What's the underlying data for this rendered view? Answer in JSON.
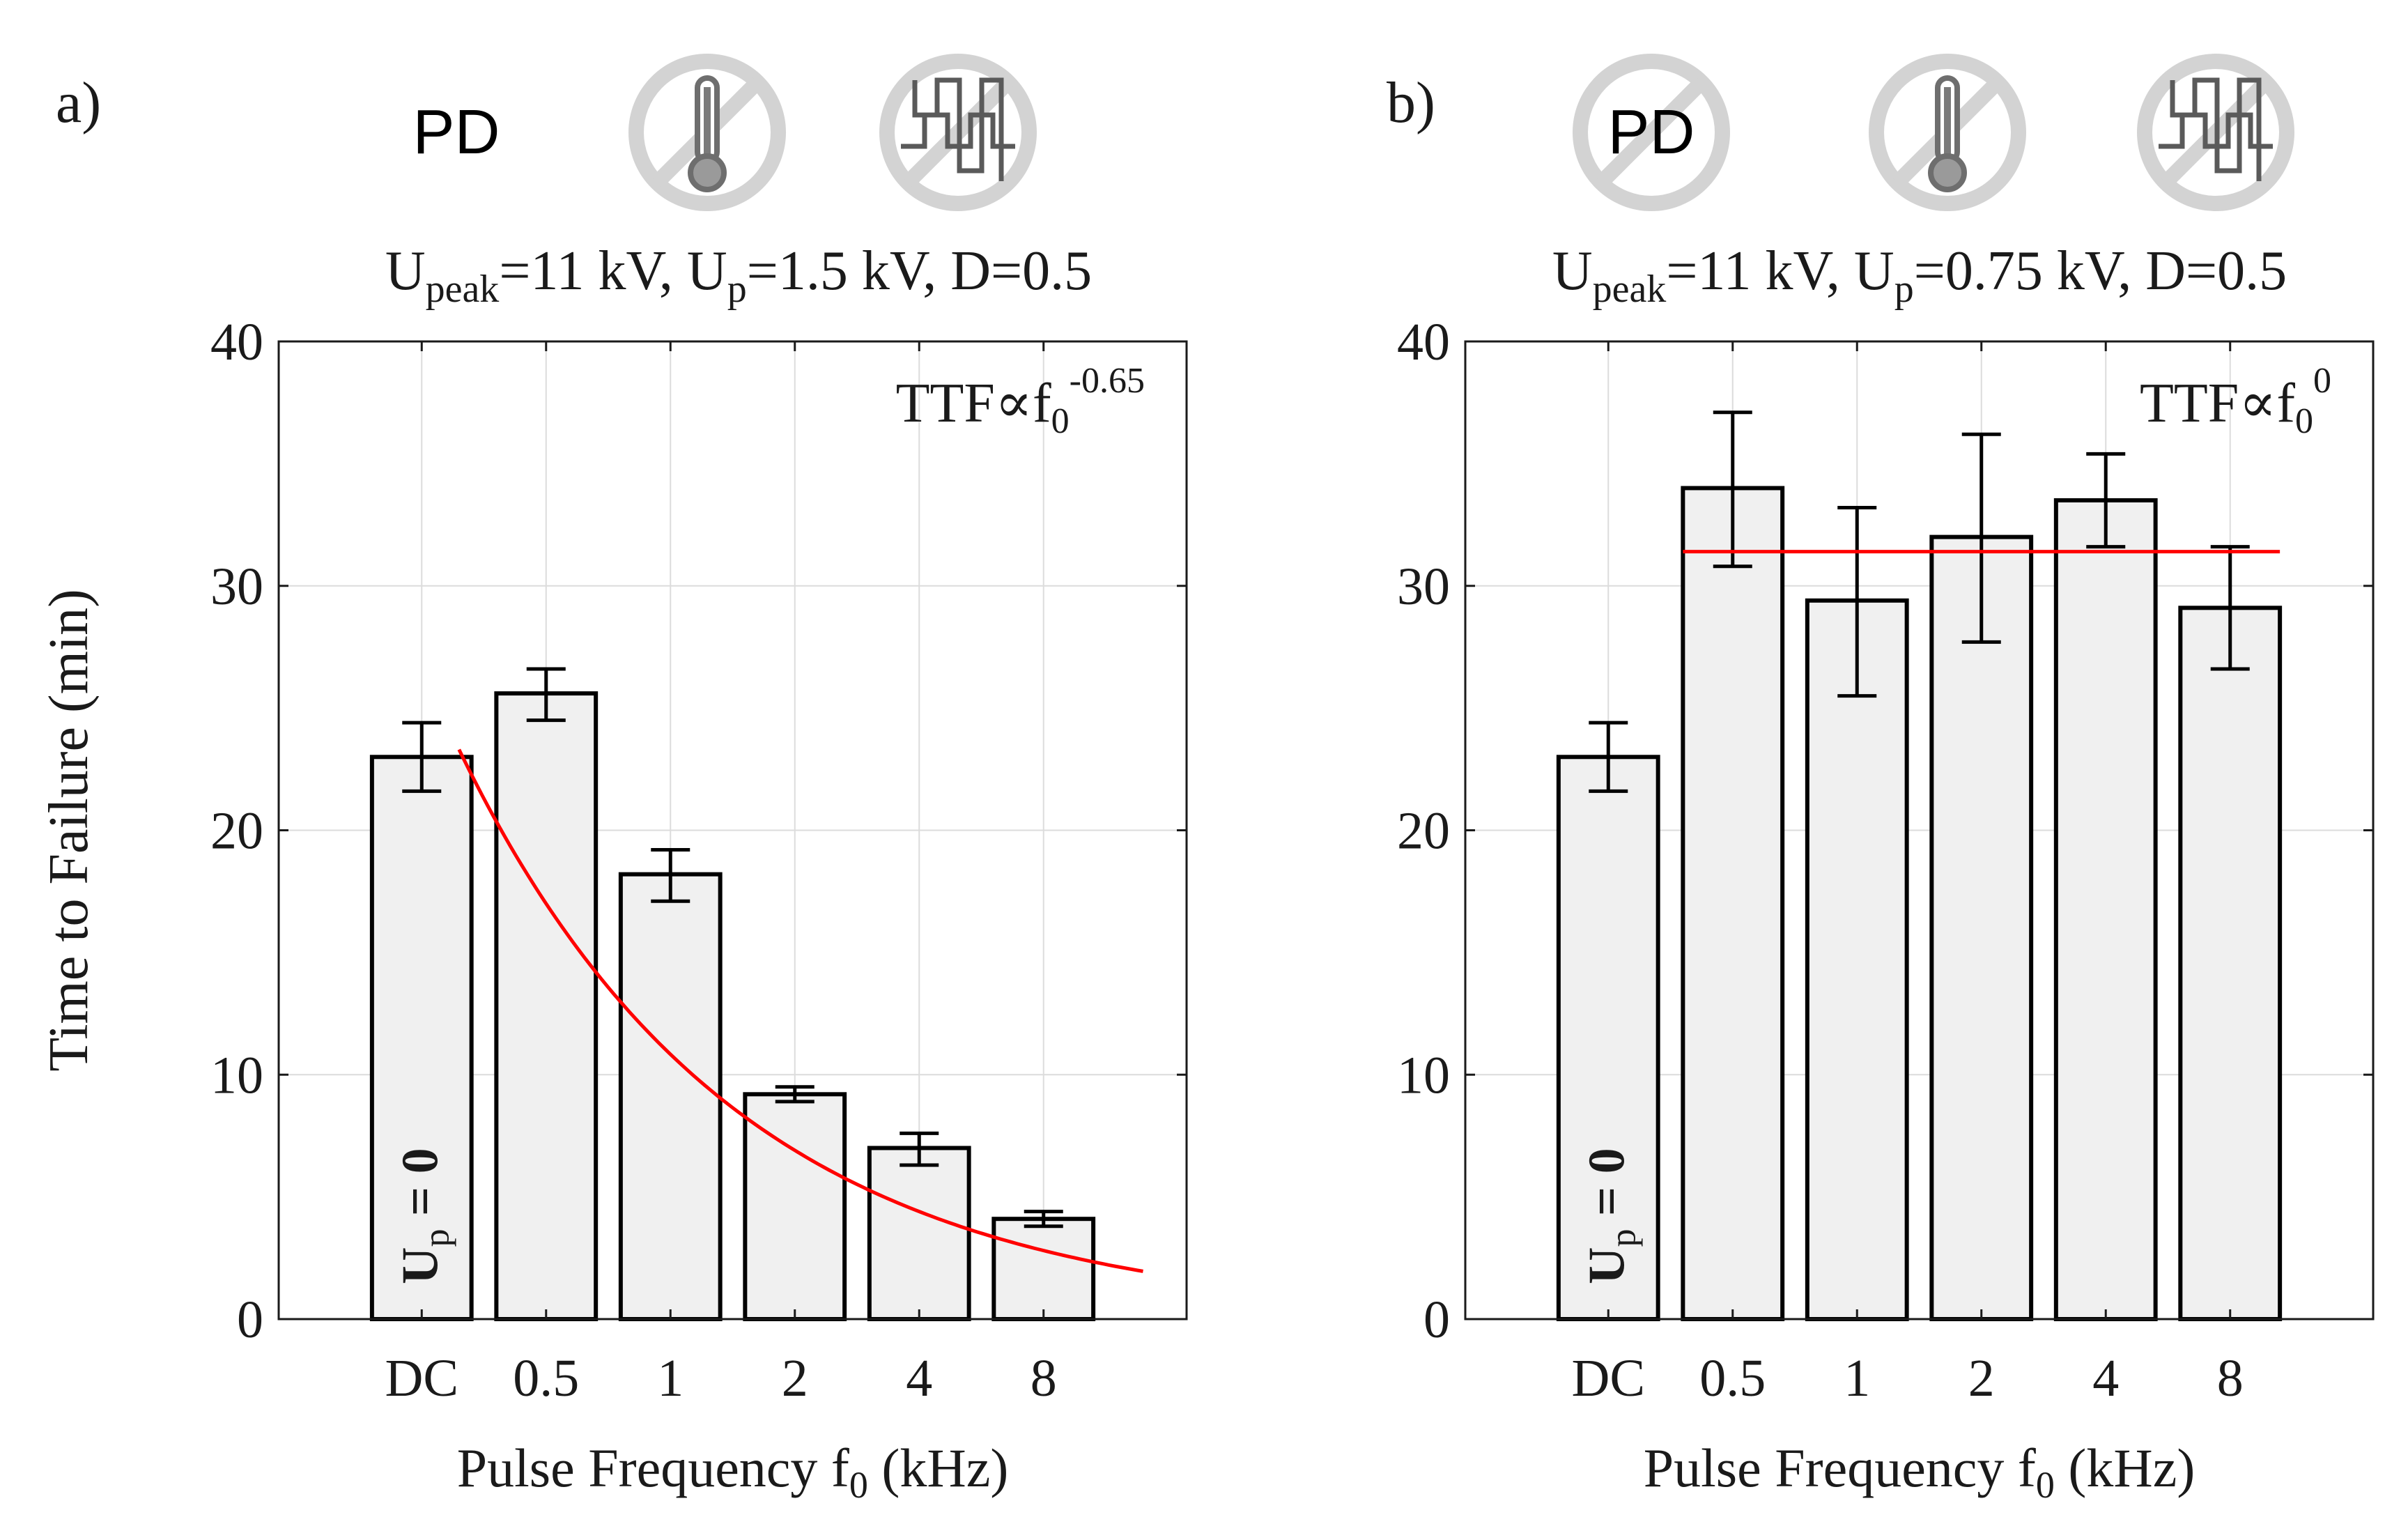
{
  "chart_data": [
    {
      "type": "bar",
      "panel_label": "a)",
      "title_parts": {
        "U": "U",
        "peak_sub": "peak",
        "mid1": "=11 kV, U",
        "p_sub": "p",
        "tail": "=1.5 kV, D=0.5"
      },
      "xlabel_parts": {
        "pre": "Pulse Frequency f",
        "sub": "0",
        "post": " (kHz)"
      },
      "ylabel": "Time to Failure (min)",
      "categories": [
        "DC",
        "0.5",
        "1",
        "2",
        "4",
        "8"
      ],
      "values": [
        23.0,
        25.6,
        18.2,
        9.2,
        7.0,
        4.1
      ],
      "err_low": [
        21.6,
        24.5,
        17.1,
        8.9,
        6.3,
        3.8
      ],
      "err_high": [
        24.4,
        26.6,
        19.2,
        9.5,
        7.6,
        4.4
      ],
      "ylim": [
        0,
        40
      ],
      "yticks": [
        "0",
        "10",
        "20",
        "30",
        "40"
      ],
      "grid": true,
      "annotation": {
        "base": "TTF",
        "prop": "∝",
        "f": "f",
        "sub": "0",
        "sup": "-0.65"
      },
      "dc_label": {
        "U": "U",
        "sub": "p",
        "eq": " = 0"
      },
      "fit": {
        "type": "power",
        "exponent": -0.65,
        "coefficient": 17.0,
        "x_from": 0.3,
        "x_to": 5.8,
        "color": "#ff0000"
      },
      "icons": {
        "pd": "PD",
        "pd_crossed": false,
        "thermometer_crossed": true,
        "waveform_crossed": true
      }
    },
    {
      "type": "bar",
      "panel_label": "b)",
      "title_parts": {
        "U": "U",
        "peak_sub": "peak",
        "mid1": "=11 kV, U",
        "p_sub": "p",
        "tail": "=0.75 kV, D=0.5"
      },
      "xlabel_parts": {
        "pre": "Pulse Frequency f",
        "sub": "0",
        "post": " (kHz)"
      },
      "ylabel": "",
      "categories": [
        "DC",
        "0.5",
        "1",
        "2",
        "4",
        "8"
      ],
      "values": [
        23.0,
        34.0,
        29.4,
        32.0,
        33.5,
        29.1
      ],
      "err_low": [
        21.6,
        30.8,
        25.5,
        27.7,
        31.6,
        26.6
      ],
      "err_high": [
        24.4,
        37.1,
        33.2,
        36.2,
        35.4,
        31.6
      ],
      "ylim": [
        0,
        40
      ],
      "yticks": [
        "0",
        "10",
        "20",
        "30",
        "40"
      ],
      "grid": true,
      "annotation": {
        "base": "TTF",
        "prop": "∝",
        "f": "f",
        "sub": "0",
        "sup": "0"
      },
      "dc_label": {
        "U": "U",
        "sub": "p",
        "eq": " = 0"
      },
      "fit": {
        "type": "constant",
        "value": 31.4,
        "x_from": 0.6,
        "x_to": 5.4,
        "color": "#ff0000"
      },
      "icons": {
        "pd": "PD",
        "pd_crossed": true,
        "thermometer_crossed": true,
        "waveform_crossed": true
      }
    }
  ]
}
